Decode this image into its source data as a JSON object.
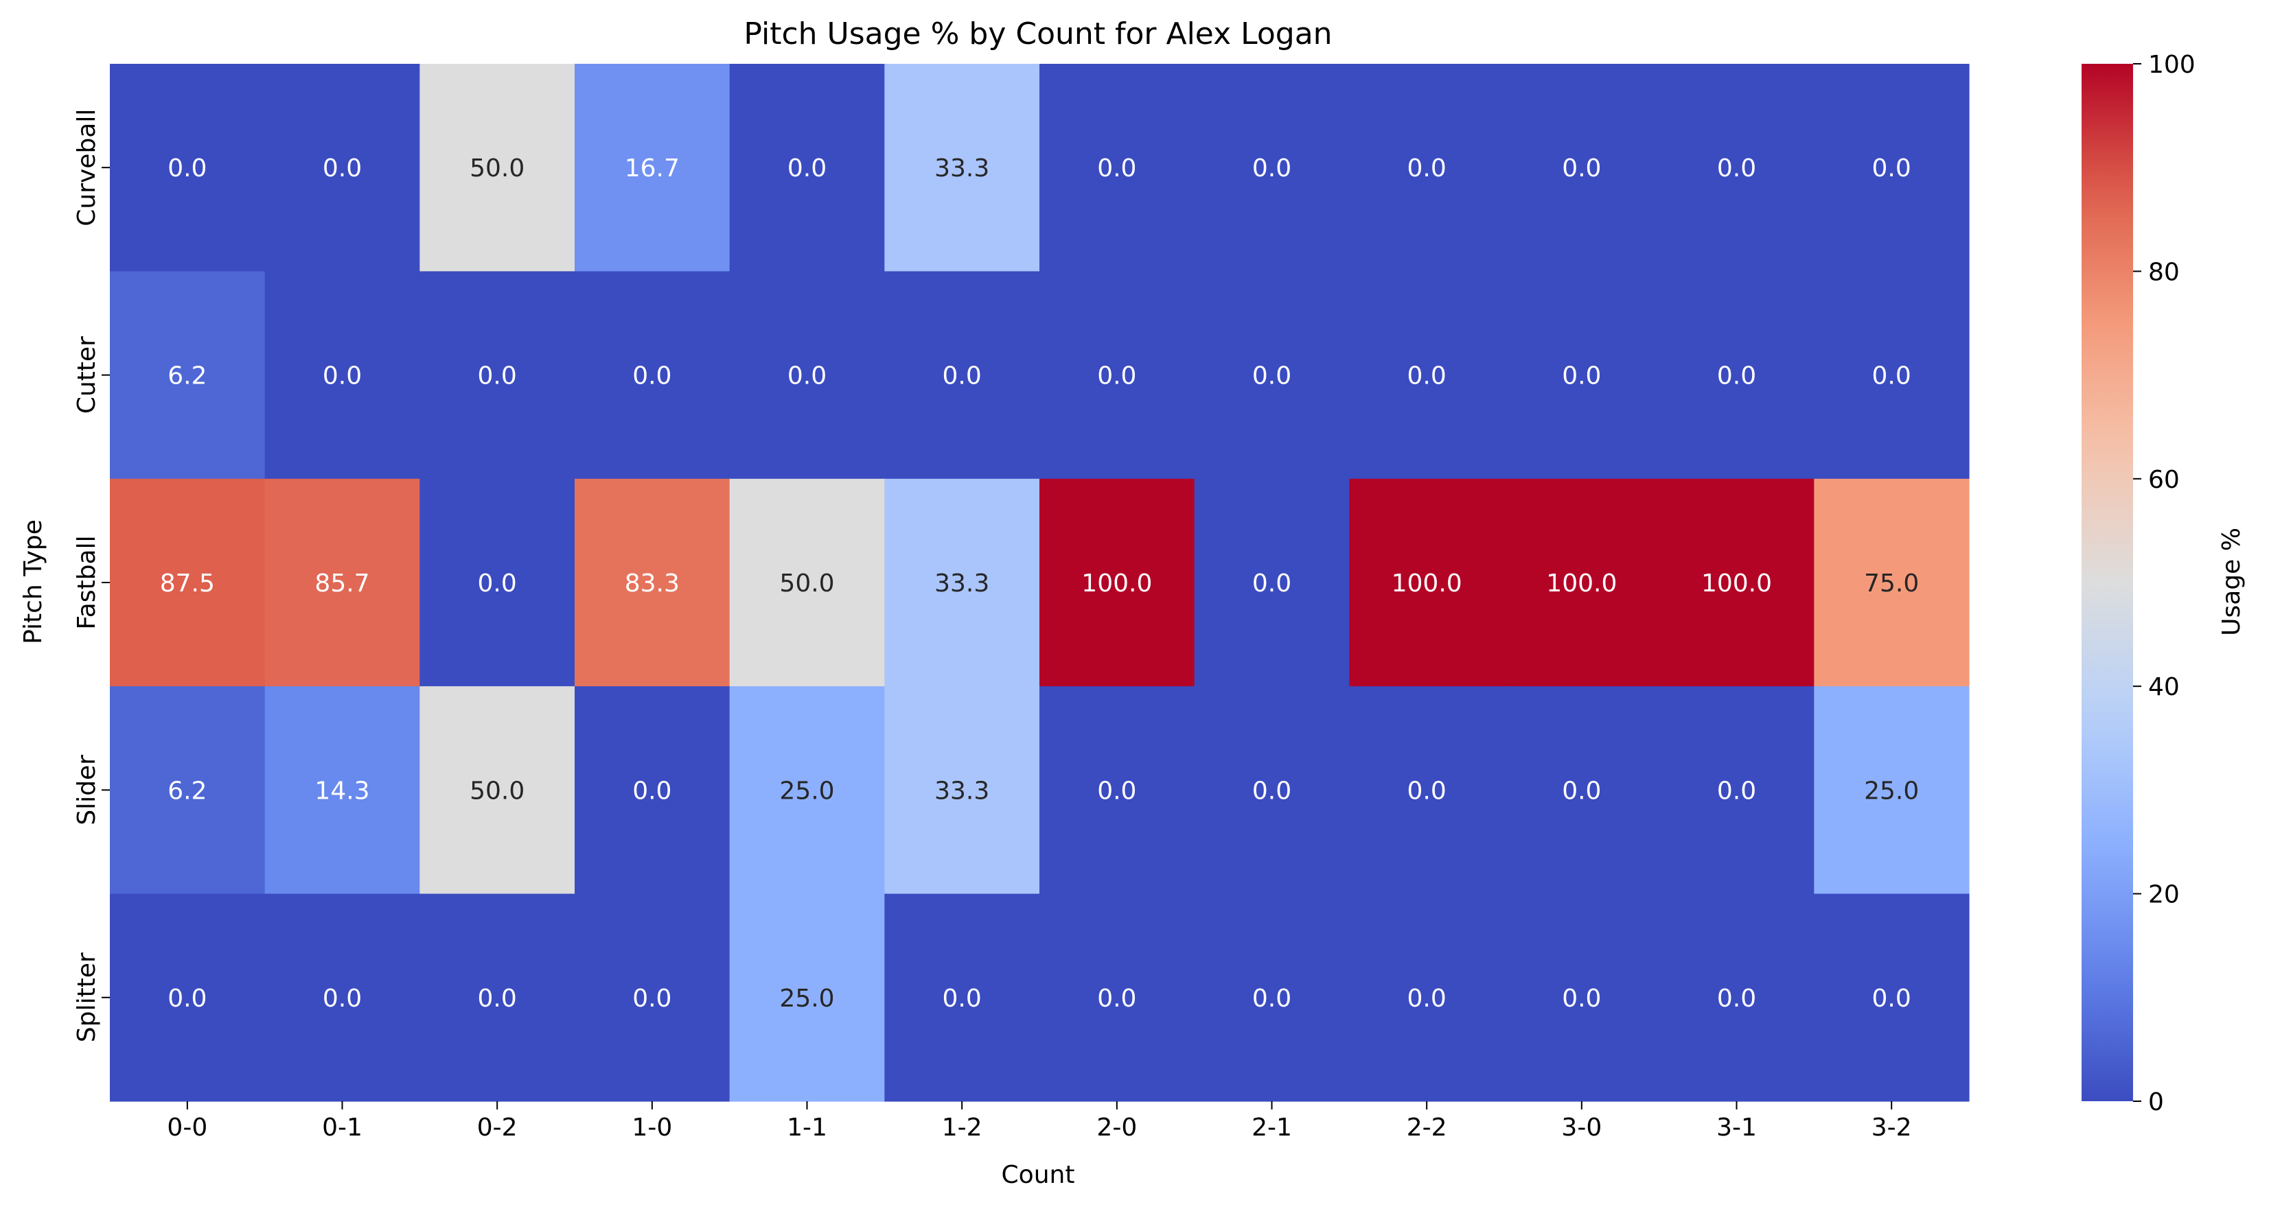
{
  "chart_data": {
    "type": "heatmap",
    "title": "Pitch Usage % by Count for Alex Logan",
    "xlabel": "Count",
    "ylabel": "Pitch Type",
    "colorbar_label": "Usage %",
    "colormap": "coolwarm",
    "value_range": [
      0,
      100
    ],
    "colorbar_ticks": [
      "0",
      "20",
      "40",
      "60",
      "80",
      "100"
    ],
    "x_categories": [
      "0-0",
      "0-1",
      "0-2",
      "1-0",
      "1-1",
      "1-2",
      "2-0",
      "2-1",
      "2-2",
      "3-0",
      "3-1",
      "3-2"
    ],
    "y_categories": [
      "Curveball",
      "Cutter",
      "Fastball",
      "Slider",
      "Splitter"
    ],
    "values": [
      [
        0.0,
        0.0,
        50.0,
        16.7,
        0.0,
        33.3,
        0.0,
        0.0,
        0.0,
        0.0,
        0.0,
        0.0
      ],
      [
        6.2,
        0.0,
        0.0,
        0.0,
        0.0,
        0.0,
        0.0,
        0.0,
        0.0,
        0.0,
        0.0,
        0.0
      ],
      [
        87.5,
        85.7,
        0.0,
        83.3,
        50.0,
        33.3,
        100.0,
        0.0,
        100.0,
        100.0,
        100.0,
        75.0
      ],
      [
        6.2,
        14.3,
        50.0,
        0.0,
        25.0,
        33.3,
        0.0,
        0.0,
        0.0,
        0.0,
        0.0,
        25.0
      ],
      [
        0.0,
        0.0,
        0.0,
        0.0,
        25.0,
        0.0,
        0.0,
        0.0,
        0.0,
        0.0,
        0.0,
        0.0
      ]
    ],
    "annotations": [
      [
        "0.0",
        "0.0",
        "50.0",
        "16.7",
        "0.0",
        "33.3",
        "0.0",
        "0.0",
        "0.0",
        "0.0",
        "0.0",
        "0.0"
      ],
      [
        "6.2",
        "0.0",
        "0.0",
        "0.0",
        "0.0",
        "0.0",
        "0.0",
        "0.0",
        "0.0",
        "0.0",
        "0.0",
        "0.0"
      ],
      [
        "87.5",
        "85.7",
        "0.0",
        "83.3",
        "50.0",
        "33.3",
        "100.0",
        "0.0",
        "100.0",
        "100.0",
        "100.0",
        "75.0"
      ],
      [
        "6.2",
        "14.3",
        "50.0",
        "0.0",
        "25.0",
        "33.3",
        "0.0",
        "0.0",
        "0.0",
        "0.0",
        "0.0",
        "25.0"
      ],
      [
        "0.0",
        "0.0",
        "0.0",
        "0.0",
        "25.0",
        "0.0",
        "0.0",
        "0.0",
        "0.0",
        "0.0",
        "0.0",
        "0.0"
      ]
    ],
    "grid": false,
    "colorbar_position": "right"
  }
}
